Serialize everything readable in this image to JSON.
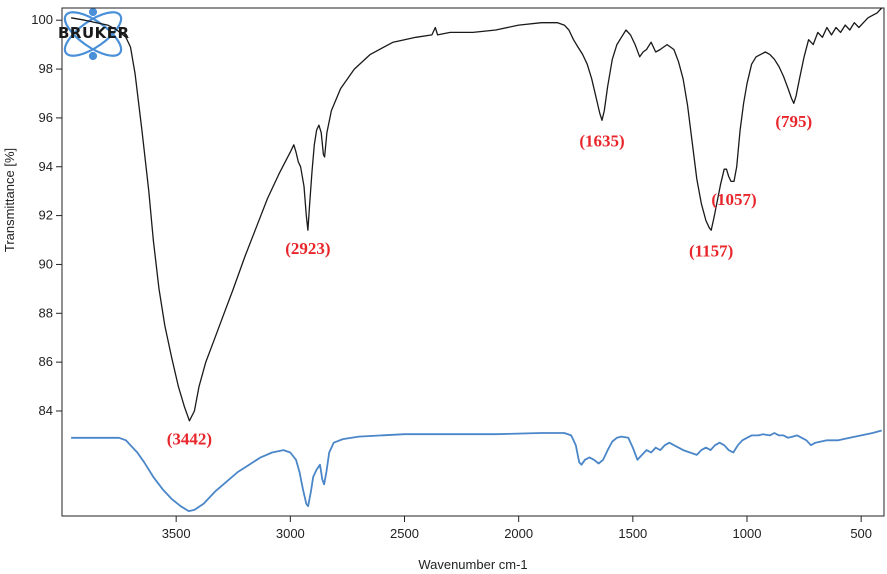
{
  "chart_data": {
    "type": "line",
    "xlabel": "Wavenumber cm-1",
    "ylabel": "Transmittance [%]",
    "xlim": [
      4000,
      400
    ],
    "ylim": [
      79.7,
      100.5
    ],
    "x_ticks": [
      3500,
      3000,
      2500,
      2000,
      1500,
      1000,
      500
    ],
    "y_ticks": [
      84,
      86,
      88,
      90,
      92,
      94,
      96,
      98,
      100
    ],
    "grid": false,
    "logo": {
      "text": "BRUKER",
      "color": "#4a90d9"
    },
    "series": [
      {
        "color": "#1a1a1a",
        "points": [
          [
            3960,
            100.1
          ],
          [
            3900,
            100.0
          ],
          [
            3800,
            99.8
          ],
          [
            3760,
            99.6
          ],
          [
            3720,
            99.3
          ],
          [
            3700,
            98.9
          ],
          [
            3680,
            97.8
          ],
          [
            3650,
            95.5
          ],
          [
            3620,
            93.0
          ],
          [
            3600,
            91.0
          ],
          [
            3575,
            89.0
          ],
          [
            3550,
            87.5
          ],
          [
            3520,
            86.2
          ],
          [
            3490,
            85.0
          ],
          [
            3465,
            84.2
          ],
          [
            3442,
            83.6
          ],
          [
            3420,
            84.0
          ],
          [
            3400,
            85.0
          ],
          [
            3370,
            86.0
          ],
          [
            3330,
            87.0
          ],
          [
            3290,
            88.0
          ],
          [
            3250,
            89.0
          ],
          [
            3200,
            90.3
          ],
          [
            3150,
            91.5
          ],
          [
            3100,
            92.7
          ],
          [
            3050,
            93.7
          ],
          [
            3000,
            94.6
          ],
          [
            2985,
            94.9
          ],
          [
            2975,
            94.6
          ],
          [
            2965,
            94.2
          ],
          [
            2955,
            94.0
          ],
          [
            2940,
            93.2
          ],
          [
            2930,
            92.0
          ],
          [
            2923,
            91.4
          ],
          [
            2915,
            92.5
          ],
          [
            2905,
            93.8
          ],
          [
            2895,
            94.9
          ],
          [
            2885,
            95.5
          ],
          [
            2875,
            95.7
          ],
          [
            2865,
            95.4
          ],
          [
            2855,
            94.5
          ],
          [
            2850,
            94.4
          ],
          [
            2840,
            95.4
          ],
          [
            2820,
            96.3
          ],
          [
            2780,
            97.2
          ],
          [
            2720,
            98.0
          ],
          [
            2650,
            98.6
          ],
          [
            2550,
            99.1
          ],
          [
            2450,
            99.3
          ],
          [
            2380,
            99.4
          ],
          [
            2365,
            99.7
          ],
          [
            2355,
            99.4
          ],
          [
            2300,
            99.5
          ],
          [
            2200,
            99.5
          ],
          [
            2100,
            99.6
          ],
          [
            2000,
            99.8
          ],
          [
            1900,
            99.9
          ],
          [
            1830,
            99.9
          ],
          [
            1800,
            99.8
          ],
          [
            1780,
            99.6
          ],
          [
            1760,
            99.2
          ],
          [
            1740,
            98.9
          ],
          [
            1720,
            98.6
          ],
          [
            1700,
            98.2
          ],
          [
            1680,
            97.6
          ],
          [
            1660,
            96.8
          ],
          [
            1645,
            96.2
          ],
          [
            1635,
            95.9
          ],
          [
            1625,
            96.3
          ],
          [
            1610,
            97.3
          ],
          [
            1590,
            98.4
          ],
          [
            1570,
            99.0
          ],
          [
            1550,
            99.3
          ],
          [
            1530,
            99.6
          ],
          [
            1510,
            99.4
          ],
          [
            1490,
            99.0
          ],
          [
            1470,
            98.5
          ],
          [
            1455,
            98.7
          ],
          [
            1440,
            98.8
          ],
          [
            1420,
            99.1
          ],
          [
            1400,
            98.7
          ],
          [
            1380,
            98.8
          ],
          [
            1350,
            99.0
          ],
          [
            1320,
            98.8
          ],
          [
            1300,
            98.3
          ],
          [
            1280,
            97.6
          ],
          [
            1260,
            96.5
          ],
          [
            1240,
            95.0
          ],
          [
            1220,
            93.5
          ],
          [
            1200,
            92.5
          ],
          [
            1180,
            91.8
          ],
          [
            1165,
            91.5
          ],
          [
            1157,
            91.4
          ],
          [
            1145,
            91.9
          ],
          [
            1130,
            92.6
          ],
          [
            1115,
            93.3
          ],
          [
            1100,
            93.9
          ],
          [
            1090,
            93.9
          ],
          [
            1080,
            93.6
          ],
          [
            1070,
            93.4
          ],
          [
            1057,
            93.4
          ],
          [
            1045,
            94.0
          ],
          [
            1030,
            95.5
          ],
          [
            1015,
            96.6
          ],
          [
            1000,
            97.4
          ],
          [
            980,
            98.2
          ],
          [
            960,
            98.5
          ],
          [
            940,
            98.6
          ],
          [
            920,
            98.7
          ],
          [
            900,
            98.6
          ],
          [
            880,
            98.4
          ],
          [
            860,
            98.1
          ],
          [
            840,
            97.7
          ],
          [
            820,
            97.2
          ],
          [
            805,
            96.8
          ],
          [
            795,
            96.6
          ],
          [
            785,
            96.9
          ],
          [
            770,
            97.6
          ],
          [
            750,
            98.5
          ],
          [
            730,
            99.2
          ],
          [
            710,
            99.0
          ],
          [
            690,
            99.5
          ],
          [
            670,
            99.3
          ],
          [
            650,
            99.7
          ],
          [
            630,
            99.4
          ],
          [
            610,
            99.7
          ],
          [
            590,
            99.5
          ],
          [
            570,
            99.8
          ],
          [
            550,
            99.6
          ],
          [
            530,
            99.9
          ],
          [
            510,
            99.7
          ],
          [
            490,
            99.9
          ],
          [
            470,
            100.1
          ],
          [
            450,
            100.2
          ],
          [
            430,
            100.3
          ],
          [
            410,
            100.5
          ]
        ]
      },
      {
        "color": "#4a86c8",
        "points": [
          [
            3960,
            82.9
          ],
          [
            3850,
            82.9
          ],
          [
            3750,
            82.9
          ],
          [
            3720,
            82.8
          ],
          [
            3700,
            82.6
          ],
          [
            3670,
            82.3
          ],
          [
            3640,
            81.9
          ],
          [
            3600,
            81.3
          ],
          [
            3560,
            80.8
          ],
          [
            3520,
            80.4
          ],
          [
            3480,
            80.1
          ],
          [
            3445,
            79.9
          ],
          [
            3420,
            79.95
          ],
          [
            3380,
            80.2
          ],
          [
            3330,
            80.7
          ],
          [
            3280,
            81.1
          ],
          [
            3230,
            81.5
          ],
          [
            3180,
            81.8
          ],
          [
            3130,
            82.1
          ],
          [
            3080,
            82.3
          ],
          [
            3030,
            82.4
          ],
          [
            3000,
            82.3
          ],
          [
            2975,
            82.0
          ],
          [
            2960,
            81.5
          ],
          [
            2945,
            80.8
          ],
          [
            2930,
            80.2
          ],
          [
            2922,
            80.1
          ],
          [
            2910,
            80.7
          ],
          [
            2900,
            81.3
          ],
          [
            2885,
            81.6
          ],
          [
            2870,
            81.8
          ],
          [
            2860,
            81.2
          ],
          [
            2852,
            81.0
          ],
          [
            2842,
            81.5
          ],
          [
            2830,
            82.3
          ],
          [
            2810,
            82.7
          ],
          [
            2770,
            82.85
          ],
          [
            2700,
            82.95
          ],
          [
            2500,
            83.05
          ],
          [
            2300,
            83.05
          ],
          [
            2100,
            83.05
          ],
          [
            1900,
            83.1
          ],
          [
            1800,
            83.1
          ],
          [
            1770,
            83.0
          ],
          [
            1750,
            82.6
          ],
          [
            1735,
            81.9
          ],
          [
            1725,
            81.8
          ],
          [
            1710,
            82.0
          ],
          [
            1690,
            82.1
          ],
          [
            1670,
            82.0
          ],
          [
            1650,
            81.85
          ],
          [
            1630,
            82.0
          ],
          [
            1610,
            82.4
          ],
          [
            1590,
            82.75
          ],
          [
            1570,
            82.9
          ],
          [
            1550,
            82.95
          ],
          [
            1520,
            82.9
          ],
          [
            1500,
            82.5
          ],
          [
            1480,
            82.0
          ],
          [
            1460,
            82.2
          ],
          [
            1440,
            82.4
          ],
          [
            1420,
            82.3
          ],
          [
            1400,
            82.5
          ],
          [
            1380,
            82.4
          ],
          [
            1360,
            82.6
          ],
          [
            1340,
            82.7
          ],
          [
            1320,
            82.6
          ],
          [
            1300,
            82.5
          ],
          [
            1280,
            82.4
          ],
          [
            1250,
            82.3
          ],
          [
            1220,
            82.2
          ],
          [
            1200,
            82.4
          ],
          [
            1180,
            82.5
          ],
          [
            1160,
            82.4
          ],
          [
            1140,
            82.6
          ],
          [
            1120,
            82.7
          ],
          [
            1100,
            82.6
          ],
          [
            1080,
            82.4
          ],
          [
            1060,
            82.3
          ],
          [
            1040,
            82.6
          ],
          [
            1020,
            82.8
          ],
          [
            1000,
            82.9
          ],
          [
            980,
            83.0
          ],
          [
            950,
            83.0
          ],
          [
            930,
            83.05
          ],
          [
            900,
            83.0
          ],
          [
            880,
            83.1
          ],
          [
            860,
            83.0
          ],
          [
            840,
            83.0
          ],
          [
            820,
            82.9
          ],
          [
            800,
            82.95
          ],
          [
            780,
            83.0
          ],
          [
            760,
            82.9
          ],
          [
            740,
            82.8
          ],
          [
            720,
            82.6
          ],
          [
            700,
            82.7
          ],
          [
            650,
            82.8
          ],
          [
            600,
            82.8
          ],
          [
            550,
            82.9
          ],
          [
            500,
            83.0
          ],
          [
            450,
            83.1
          ],
          [
            410,
            83.2
          ]
        ]
      }
    ],
    "annotations": [
      {
        "text": "(3442)",
        "x": 3442,
        "y": 83.2
      },
      {
        "text": "(2923)",
        "x": 2923,
        "y": 91.0
      },
      {
        "text": "(1635)",
        "x": 1635,
        "y": 95.4
      },
      {
        "text": "(1157)",
        "x": 1157,
        "y": 90.9
      },
      {
        "text": "(1057)",
        "x": 1057,
        "y": 93.0
      },
      {
        "text": "(795)",
        "x": 795,
        "y": 96.2
      }
    ]
  }
}
